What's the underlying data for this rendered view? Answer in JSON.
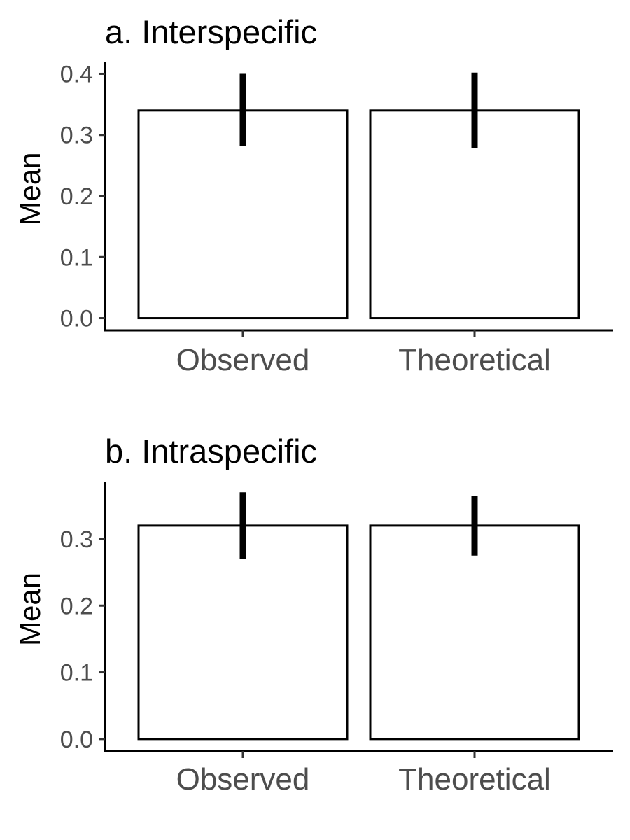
{
  "chart_data": [
    {
      "type": "bar",
      "title": "a. Interspecific",
      "xlabel": "",
      "ylabel": "Mean",
      "categories": [
        "Observed",
        "Theoretical"
      ],
      "values": [
        0.34,
        0.34
      ],
      "error_low": [
        0.282,
        0.278
      ],
      "error_high": [
        0.4,
        0.402
      ],
      "ylim": [
        -0.02,
        0.42
      ],
      "yticks": [
        0.0,
        0.1,
        0.2,
        0.3,
        0.4
      ],
      "ytick_labels": [
        "0.0",
        "0.1",
        "0.2",
        "0.3",
        "0.4"
      ],
      "grid": false,
      "bar_fill": "#ffffff",
      "bar_edge": "#000000"
    },
    {
      "type": "bar",
      "title": "b. Intraspecific",
      "xlabel": "",
      "ylabel": "Mean",
      "categories": [
        "Observed",
        "Theoretical"
      ],
      "values": [
        0.32,
        0.32
      ],
      "error_low": [
        0.27,
        0.275
      ],
      "error_high": [
        0.37,
        0.364
      ],
      "ylim": [
        -0.018,
        0.386
      ],
      "yticks": [
        0.0,
        0.1,
        0.2,
        0.3
      ],
      "ytick_labels": [
        "0.0",
        "0.1",
        "0.2",
        "0.3"
      ],
      "grid": false,
      "bar_fill": "#ffffff",
      "bar_edge": "#000000"
    }
  ]
}
